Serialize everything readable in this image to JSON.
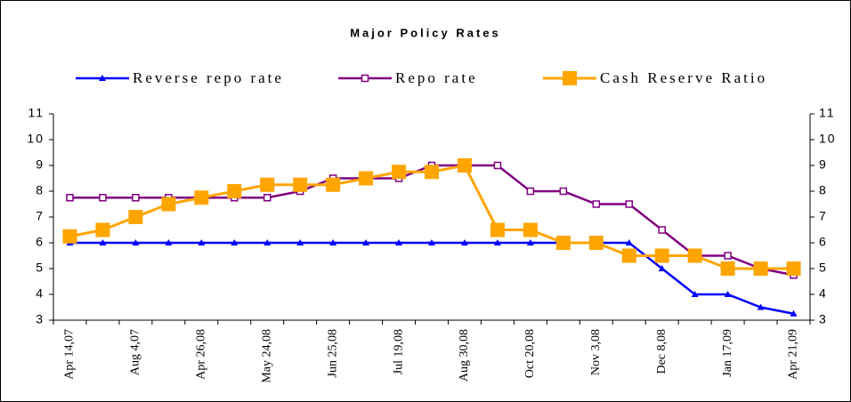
{
  "chart_data": {
    "type": "line",
    "title": "Major Policy Rates",
    "categories": [
      "Apr 14,07",
      null,
      "Aug 4,07",
      null,
      "Apr 26,08",
      null,
      "May 24,08",
      null,
      "Jun 25,08",
      null,
      "Jul 19,08",
      null,
      "Aug 30,08",
      null,
      "Oct 20,08",
      null,
      "Nov 3,08",
      null,
      "Dec 8,08",
      null,
      "Jan 17,09",
      null,
      "Apr 21,09"
    ],
    "series": [
      {
        "name": "Reverse repo rate",
        "color": "#0000ff",
        "marker": "triangle",
        "values": [
          6,
          6,
          6,
          6,
          6,
          6,
          6,
          6,
          6,
          6,
          6,
          6,
          6,
          6,
          6,
          6,
          6,
          6,
          5,
          4,
          4,
          3.5,
          3.25
        ]
      },
      {
        "name": "Repo rate",
        "color": "#800080",
        "marker": "square-open",
        "values": [
          7.75,
          7.75,
          7.75,
          7.75,
          7.75,
          7.75,
          7.75,
          8,
          8.5,
          8.5,
          8.5,
          9,
          9,
          9,
          8,
          8,
          7.5,
          7.5,
          6.5,
          5.5,
          5.5,
          5,
          4.75
        ]
      },
      {
        "name": "Cash Reserve Ratio",
        "color": "#ffa500",
        "marker": "square",
        "values": [
          6.25,
          6.5,
          7,
          7.5,
          7.75,
          8,
          8.25,
          8.25,
          8.25,
          8.5,
          8.75,
          8.75,
          9,
          6.5,
          6.5,
          6,
          6,
          5.5,
          5.5,
          5.5,
          5,
          5,
          5
        ]
      }
    ],
    "ylim": [
      3,
      11
    ],
    "yticks": [
      3,
      4,
      5,
      6,
      7,
      8,
      9,
      10,
      11
    ],
    "y2lim": [
      3,
      11
    ],
    "y2ticks": [
      3,
      4,
      5,
      6,
      7,
      8,
      9,
      10,
      11
    ],
    "legend": "top"
  }
}
